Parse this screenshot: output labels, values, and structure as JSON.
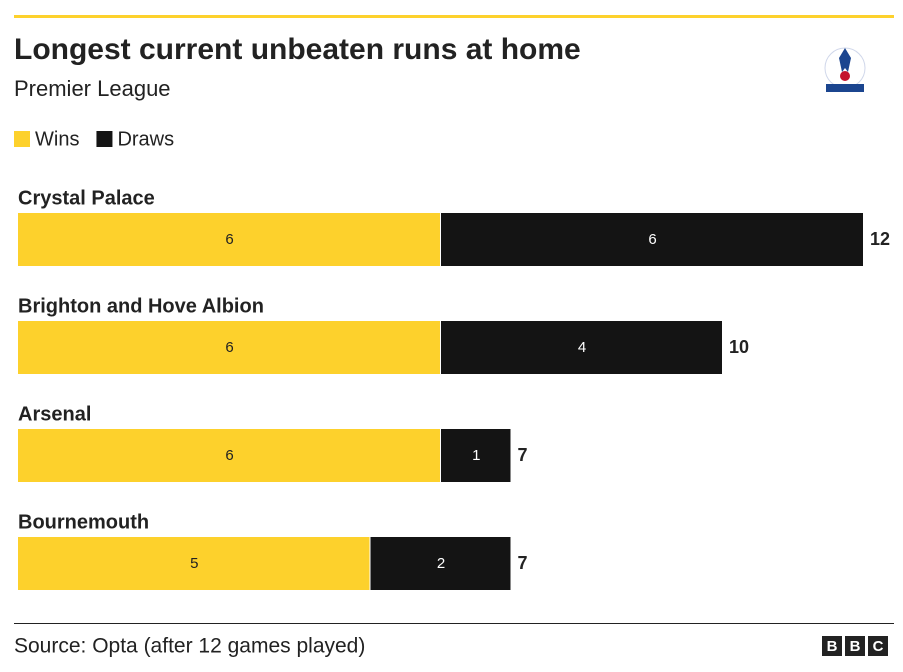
{
  "chart_data": {
    "type": "stacked-bar-horizontal",
    "title": "Longest current unbeaten runs at home",
    "subtitle": "Premier League",
    "categories": [
      "Crystal Palace",
      "Brighton and Hove Albion",
      "Arsenal",
      "Bournemouth"
    ],
    "series": [
      {
        "name": "Wins",
        "color": "#fdd12c",
        "values": [
          6,
          6,
          6,
          5
        ]
      },
      {
        "name": "Draws",
        "color": "#141414",
        "values": [
          6,
          4,
          1,
          2
        ]
      }
    ],
    "totals": [
      12,
      10,
      7,
      7
    ],
    "source": "Source: Opta (after 12 games played)",
    "brand": [
      "B",
      "B",
      "C"
    ]
  }
}
